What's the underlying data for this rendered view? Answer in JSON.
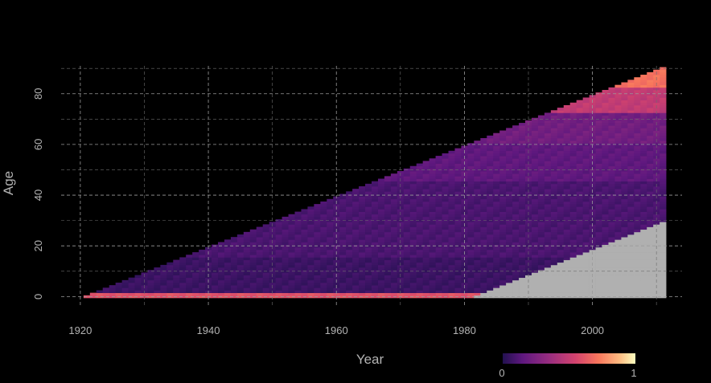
{
  "chart_data": {
    "type": "heatmap",
    "xlabel": "Year",
    "ylabel": "Age",
    "xlim": [
      1917,
      2014
    ],
    "ylim": [
      -4,
      91
    ],
    "x_ticks": [
      1920,
      1940,
      1960,
      1980,
      2000
    ],
    "y_ticks": [
      0,
      20,
      40,
      60,
      80
    ],
    "grid": true,
    "colormap": "magma",
    "legend": {
      "position": "bottom-right",
      "min": 0,
      "max": 1,
      "labels": [
        "0",
        "1"
      ]
    },
    "colors": {
      "background": "#000000",
      "grid": "#9a9a9a",
      "text": "#b3b3b3",
      "missing": "#b0b0b0"
    },
    "region": {
      "year_start": 1921,
      "year_end": 2011,
      "age_band_low_values": [
        {
          "age_max": 1,
          "value": 0.55
        },
        {
          "age_max": 15,
          "value": 0.07
        },
        {
          "age_max": 45,
          "value": 0.11
        },
        {
          "age_max": 60,
          "value": 0.17
        },
        {
          "age_max": 72,
          "value": 0.22
        },
        {
          "age_max": 82,
          "value": 0.45
        },
        {
          "age_max": 91,
          "value": 0.65
        }
      ],
      "missing_region": {
        "year_start": 1982,
        "year_end": 2011,
        "age_max_at_end": 29
      }
    }
  }
}
